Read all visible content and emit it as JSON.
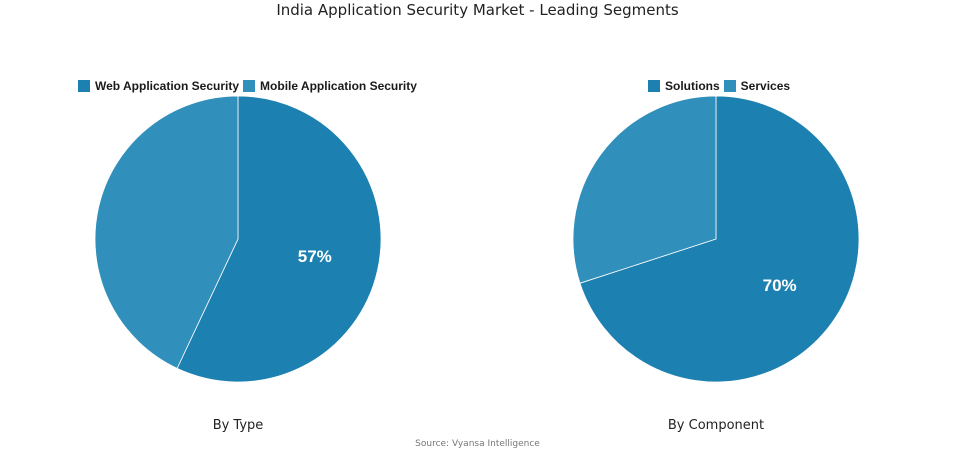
{
  "title": "India Application Security Market - Leading Segments",
  "source": "Source: Vyansa Intelligence",
  "chart_data": [
    {
      "type": "pie",
      "caption": "By Type",
      "legend_position": "top",
      "slices": [
        {
          "label": "Web Application Security",
          "value": 57,
          "display": "57%",
          "color": "#1c80b0"
        },
        {
          "label": "Mobile Application Security",
          "value": 43,
          "display": "",
          "color": "#318fbb"
        }
      ]
    },
    {
      "type": "pie",
      "caption": "By Component",
      "legend_position": "top",
      "slices": [
        {
          "label": "Solutions",
          "value": 70,
          "display": "70%",
          "color": "#1c80b0"
        },
        {
          "label": "Services",
          "value": 30,
          "display": "",
          "color": "#318fbb"
        }
      ]
    }
  ]
}
